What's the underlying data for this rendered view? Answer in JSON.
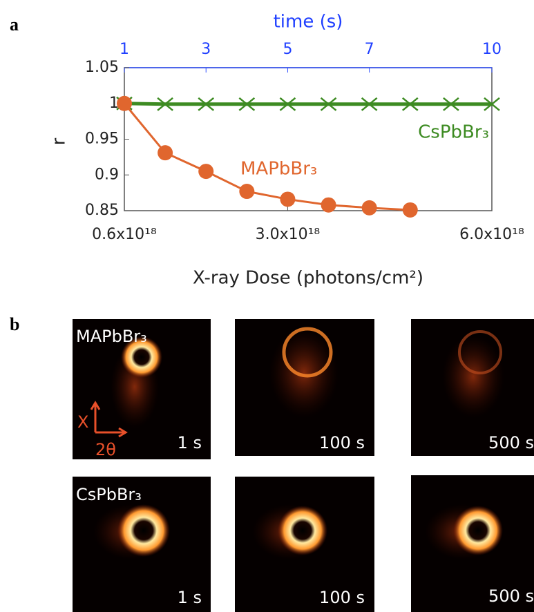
{
  "panel_labels": [
    "a",
    "b"
  ],
  "chart_data": {
    "type": "line",
    "xlabel": "time (s)",
    "x2label": "X-ray Dose (photons/cm²)",
    "ylabel": "r",
    "x": [
      1,
      2,
      3,
      4,
      5,
      6,
      7,
      8,
      9,
      10
    ],
    "xlim": [
      1,
      10
    ],
    "xticks": [
      1,
      3,
      5,
      7,
      10
    ],
    "x2lim": [
      600000000000000000,
      6000000000000000000
    ],
    "x2ticks": [
      {
        "value": 600000000000000000,
        "label": "0.6x10¹⁸"
      },
      {
        "value": 3000000000000000000,
        "label": "3.0x10¹⁸"
      },
      {
        "value": 6000000000000000000,
        "label": "6.0x10¹⁸"
      }
    ],
    "ylim": [
      0.85,
      1.05
    ],
    "yticks": [
      {
        "value": 1.05,
        "label": "1.05"
      },
      1,
      0.95,
      0.9,
      0.85
    ],
    "series": [
      {
        "name": "CsPbBr₃",
        "color": "#3d8b22",
        "marker": "x",
        "values": [
          1.0,
          0.999,
          0.999,
          0.999,
          0.999,
          0.999,
          0.999,
          0.999,
          0.999,
          0.999
        ]
      },
      {
        "name": "MAPbBr₃",
        "color": "#e0662e",
        "marker": "o",
        "values": [
          1.0,
          0.931,
          0.905,
          0.877,
          0.866,
          0.858,
          0.854,
          0.851,
          null,
          null
        ]
      }
    ]
  },
  "images": {
    "rows": [
      {
        "label": "MAPbBr₃",
        "times": [
          "1 s",
          "100 s",
          "500 s"
        ]
      },
      {
        "label": "CsPbBr₃",
        "times": [
          "1 s",
          "100 s",
          "500 s"
        ]
      }
    ],
    "axis_x": "X",
    "axis_2theta": "2θ"
  }
}
